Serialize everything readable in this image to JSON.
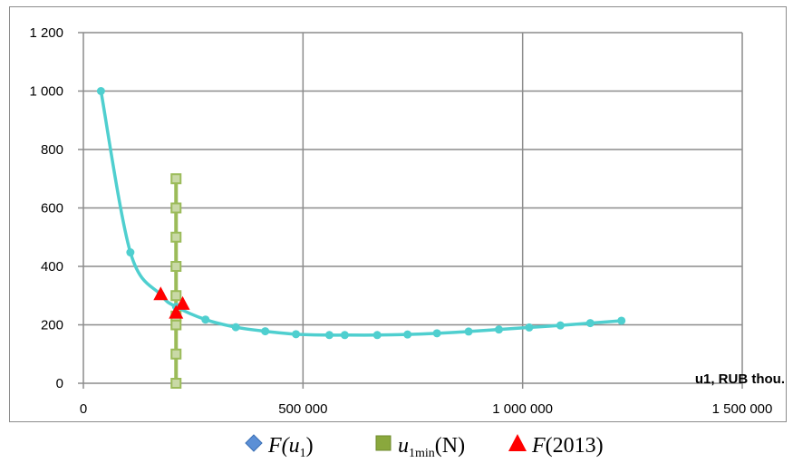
{
  "chart_data": {
    "type": "line",
    "xlabel": "u1, RUB thou.",
    "ylabel": "",
    "xlim": [
      0,
      1500000
    ],
    "ylim": [
      0,
      1200
    ],
    "x_ticks": [
      0,
      500000,
      1000000,
      1500000
    ],
    "y_ticks": [
      0,
      200,
      400,
      600,
      800,
      1000,
      1200
    ],
    "x_tick_labels": [
      "0",
      "500 000",
      "1 000 000",
      "1 500 000"
    ],
    "y_tick_labels": [
      "0",
      "200",
      "400",
      "600",
      "800",
      "1 000",
      "1 200"
    ],
    "grid": true,
    "legend_position": "bottom",
    "series": [
      {
        "name": "F(u1)",
        "color": "#4fcfcf",
        "marker": "circle",
        "x": [
          40000,
          107000,
          176000,
          211000,
          278000,
          347000,
          414000,
          484000,
          560000,
          595000,
          669000,
          738000,
          805000,
          877000,
          946000,
          1015000,
          1086000,
          1154000,
          1225000
        ],
        "y": [
          1000,
          448,
          303,
          262,
          218,
          192,
          178,
          168,
          165,
          165,
          165,
          167,
          171,
          177,
          184,
          191,
          198,
          206,
          214
        ]
      },
      {
        "name": "u1min(N)",
        "color": "#9bbb59",
        "marker": "square",
        "x": [
          211000,
          211000,
          211000,
          211000,
          211000,
          211000,
          211000,
          211000,
          211000
        ],
        "y": [
          0,
          100,
          200,
          230,
          300,
          400,
          500,
          600,
          700
        ]
      },
      {
        "name": "F(2013)",
        "color": "#ff0000",
        "marker": "triangle",
        "x": [
          176000,
          211000,
          226000
        ],
        "y": [
          303,
          240,
          270
        ]
      }
    ],
    "legend": [
      {
        "label": "F(u",
        "sub": "1",
        "tail": ")",
        "marker": "diamond",
        "color": "#5b8fd6"
      },
      {
        "label": "u",
        "sub": "1min",
        "tail": "(N)",
        "marker": "square",
        "color": "#8aa83d"
      },
      {
        "label": "F",
        "sub": "",
        "tail": "(2013)",
        "marker": "triangle",
        "color": "#ff0000"
      }
    ]
  }
}
